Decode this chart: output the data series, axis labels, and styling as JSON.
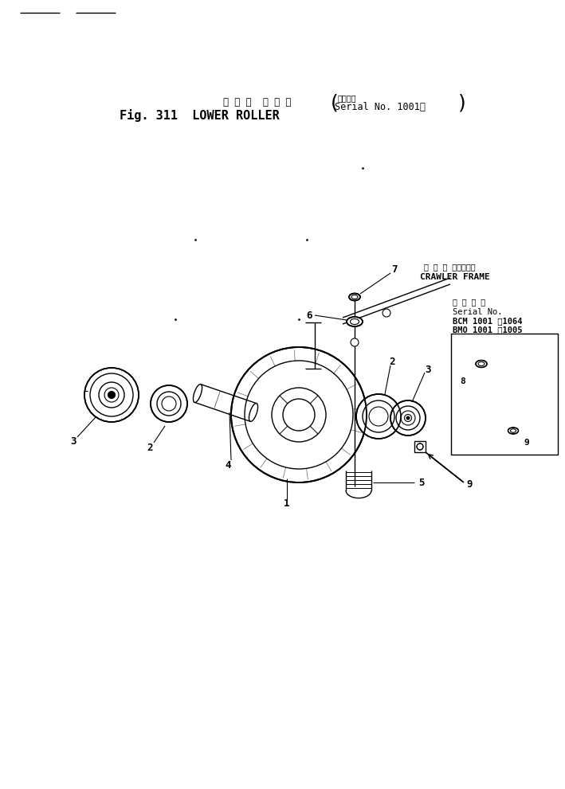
{
  "bg_color": "#ffffff",
  "title_japanese": "ロ ワ ー  ロ ー ラ",
  "title_english": "Fig. 311  LOWER ROLLER",
  "title_serial_jp": "適用号機",
  "title_serial": "Serial No. 1001～",
  "crawler_frame_jp": "ク ロ ー タフレーム",
  "crawler_frame_en": "CRAWLER FRAME",
  "inset_serial_jp": "適 用 号 機",
  "inset_serial_no": "Serial No.",
  "inset_line1": "BCM 1001 ～1064",
  "inset_line2": "BMO 1001 ～1005",
  "line_color": "#000000",
  "fig_width": 7.09,
  "fig_height": 9.91
}
